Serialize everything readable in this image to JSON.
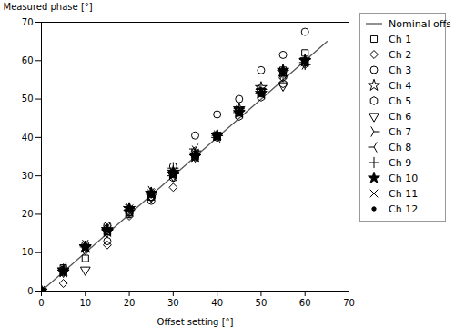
{
  "chart_data": {
    "type": "scatter",
    "xlabel": "Offset setting [°]",
    "ylabel": "Measured phase [°]",
    "xlim": [
      0,
      70
    ],
    "ylim": [
      0,
      70
    ],
    "xticks": [
      0,
      10,
      20,
      30,
      40,
      50,
      60,
      70
    ],
    "yticks": [
      0,
      10,
      20,
      30,
      40,
      50,
      60,
      70
    ],
    "grid": false,
    "series": [
      {
        "name": "Nominal offset",
        "type": "line",
        "color": "#555555",
        "x": [
          0,
          65
        ],
        "values": [
          0,
          65
        ]
      },
      {
        "name": "Ch 1",
        "type": "scatter",
        "marker": "square",
        "color": "black",
        "x": [
          0,
          5,
          10,
          15,
          20,
          25,
          30,
          35,
          40,
          45,
          50,
          55,
          60
        ],
        "values": [
          0,
          6.0,
          8.5,
          15.5,
          20.5,
          24.5,
          30.5,
          35.5,
          40.5,
          47.0,
          52.0,
          57.5,
          62.0
        ]
      },
      {
        "name": "Ch 2",
        "type": "scatter",
        "marker": "diamond",
        "color": "black",
        "x": [
          0,
          5,
          10,
          15,
          20,
          25,
          30,
          35,
          40,
          45,
          50,
          55,
          60
        ],
        "values": [
          0,
          2.0,
          10.5,
          12.0,
          19.5,
          24.5,
          27.0,
          36.5,
          40.5,
          46.5,
          51.5,
          55.5,
          59.0
        ]
      },
      {
        "name": "Ch 3",
        "type": "scatter",
        "marker": "circle",
        "color": "black",
        "x": [
          0,
          5,
          10,
          15,
          20,
          25,
          30,
          35,
          40,
          45,
          50,
          55,
          60
        ],
        "values": [
          0,
          5.5,
          11.5,
          13.0,
          20.0,
          23.5,
          32.5,
          40.5,
          46.0,
          50.0,
          57.5,
          61.5,
          67.5
        ]
      },
      {
        "name": "Ch 4",
        "type": "scatter",
        "marker": "star",
        "color": "black",
        "x": [
          0,
          5,
          10,
          15,
          20,
          25,
          30,
          35,
          40,
          45,
          50,
          55,
          60
        ],
        "values": [
          0,
          5.5,
          11.5,
          15.5,
          21.5,
          25.5,
          30.5,
          35.5,
          40.5,
          47.5,
          53.0,
          57.0,
          60.0
        ]
      },
      {
        "name": "Ch 5",
        "type": "scatter",
        "marker": "hexagon",
        "color": "black",
        "x": [
          0,
          5,
          10,
          15,
          20,
          25,
          30,
          35,
          40,
          45,
          50,
          55,
          60
        ],
        "values": [
          0,
          5.0,
          12.0,
          17.0,
          20.5,
          24.5,
          29.5,
          35.0,
          40.0,
          45.5,
          50.5,
          54.0,
          59.5
        ]
      },
      {
        "name": "Ch 6",
        "type": "scatter",
        "marker": "triangle-down",
        "color": "black",
        "x": [
          0,
          5,
          10,
          15,
          20,
          25,
          30,
          35,
          40,
          45,
          50,
          55,
          60
        ],
        "values": [
          0,
          5.0,
          5.5,
          15.5,
          20.5,
          24.5,
          30.0,
          35.0,
          40.5,
          47.0,
          52.0,
          53.5,
          60.0
        ]
      },
      {
        "name": "Ch 7",
        "type": "scatter",
        "marker": "tri-right",
        "color": "black",
        "x": [
          0,
          5,
          10,
          15,
          20,
          25,
          30,
          35,
          40,
          45,
          50,
          55,
          60
        ],
        "values": [
          0,
          5.5,
          12.0,
          16.0,
          21.5,
          26.0,
          30.5,
          36.5,
          40.5,
          47.0,
          52.5,
          56.5,
          59.0
        ]
      },
      {
        "name": "Ch 8",
        "type": "scatter",
        "marker": "tri-left",
        "color": "black",
        "x": [
          0,
          5,
          10,
          15,
          20,
          25,
          30,
          35,
          40,
          45,
          50,
          55,
          60
        ],
        "values": [
          0,
          6.0,
          12.0,
          16.5,
          21.0,
          25.5,
          30.0,
          37.0,
          40.0,
          46.5,
          51.5,
          56.5,
          59.5
        ]
      },
      {
        "name": "Ch 9",
        "type": "scatter",
        "marker": "plus",
        "color": "black",
        "x": [
          0,
          5,
          10,
          15,
          20,
          25,
          30,
          35,
          40,
          45,
          50,
          55,
          60
        ],
        "values": [
          0,
          5.5,
          11.5,
          16.0,
          21.0,
          25.5,
          32.0,
          35.5,
          40.5,
          47.5,
          52.5,
          56.0,
          59.0
        ]
      },
      {
        "name": "Ch 10",
        "type": "scatter",
        "marker": "filled-star",
        "color": "black",
        "x": [
          0,
          5,
          10,
          15,
          20,
          25,
          30,
          35,
          40,
          45,
          50,
          55,
          60
        ],
        "values": [
          0,
          5.0,
          11.5,
          16.0,
          21.5,
          25.5,
          31.0,
          35.0,
          40.5,
          46.5,
          51.5,
          57.5,
          60.0
        ]
      },
      {
        "name": "Ch 11",
        "type": "scatter",
        "marker": "cross",
        "color": "black",
        "x": [
          0,
          5,
          10,
          15,
          20,
          25,
          30,
          35,
          40,
          45,
          50,
          55,
          60
        ],
        "values": [
          0,
          5.0,
          11.0,
          16.0,
          21.5,
          25.5,
          30.5,
          36.0,
          40.5,
          46.5,
          52.0,
          57.0,
          59.5
        ]
      },
      {
        "name": "Ch 12",
        "type": "scatter",
        "marker": "point",
        "color": "black",
        "x": [
          0,
          5,
          10,
          15,
          20,
          25,
          30,
          35,
          40,
          45,
          50,
          55,
          60
        ],
        "values": [
          0,
          5.5,
          11.5,
          16.0,
          21.0,
          25.0,
          30.0,
          35.5,
          40.0,
          46.5,
          51.5,
          56.5,
          59.5
        ]
      }
    ]
  }
}
